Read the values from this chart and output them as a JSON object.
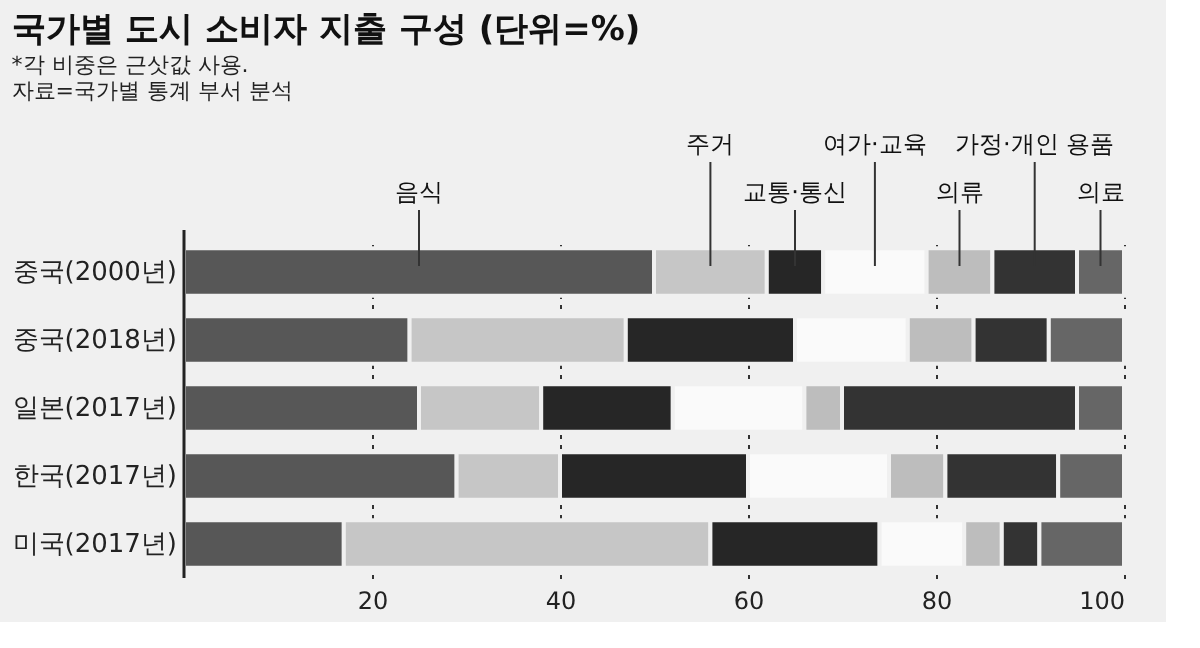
{
  "chart_data": {
    "type": "bar",
    "orientation": "horizontal",
    "stacked": true,
    "title": "국가별 도시 소비자 지출 구성 (단위=%)",
    "annotations": [
      "*각 비중은 근삿값 사용.",
      "자료=국가별 통계 부서 분석"
    ],
    "categories": [
      "중국(2000년)",
      "중국(2018년)",
      "일본(2017년)",
      "한국(2017년)",
      "미국(2017년)"
    ],
    "series": [
      {
        "name": "음식",
        "color": "#575757",
        "values": [
          50,
          24,
          25,
          29,
          17
        ]
      },
      {
        "name": "주거",
        "color": "#c6c6c6",
        "values": [
          12,
          23,
          13,
          11,
          39
        ]
      },
      {
        "name": "교통·통신",
        "color": "#262626",
        "values": [
          6,
          18,
          14,
          20,
          18
        ]
      },
      {
        "name": "여가·교육",
        "color": "#fafafa",
        "values": [
          11,
          12,
          14,
          15,
          9
        ]
      },
      {
        "name": "의류",
        "color": "#bdbdbd",
        "values": [
          7,
          7,
          4,
          6,
          4
        ]
      },
      {
        "name": "가정·개인 용품",
        "color": "#333333",
        "values": [
          9,
          8,
          25,
          12,
          4
        ]
      },
      {
        "name": "의료",
        "color": "#666666",
        "values": [
          5,
          8,
          5,
          7,
          9
        ]
      }
    ],
    "xlim": [
      0,
      100
    ],
    "xticks": [
      20,
      40,
      60,
      80,
      100
    ],
    "grid": "x",
    "legend": false
  }
}
